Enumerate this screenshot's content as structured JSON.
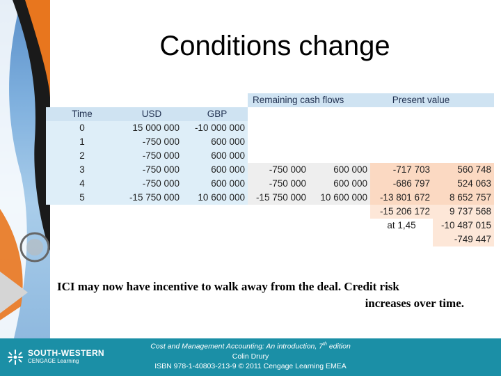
{
  "slide": {
    "title": "Conditions change",
    "note_line1": "ICI may now have incentive to walk away from the deal. Credit risk",
    "note_line2": "increases over time."
  },
  "table": {
    "header_remaining": "Remaining cash flows",
    "header_present": "Present value",
    "col_time": "Time",
    "col_usd": "USD",
    "col_gbp": "GBP",
    "rows": [
      {
        "time": "0",
        "usd": "15 000 000",
        "gbp": "-10 000 000",
        "rem_usd": "",
        "rem_gbp": "",
        "pv_usd": "",
        "pv_gbp": ""
      },
      {
        "time": "1",
        "usd": "-750 000",
        "gbp": "600 000",
        "rem_usd": "",
        "rem_gbp": "",
        "pv_usd": "",
        "pv_gbp": ""
      },
      {
        "time": "2",
        "usd": "-750 000",
        "gbp": "600 000",
        "rem_usd": "",
        "rem_gbp": "",
        "pv_usd": "",
        "pv_gbp": ""
      },
      {
        "time": "3",
        "usd": "-750 000",
        "gbp": "600 000",
        "rem_usd": "-750 000",
        "rem_gbp": "600 000",
        "pv_usd": "-717 703",
        "pv_gbp": "560 748"
      },
      {
        "time": "4",
        "usd": "-750 000",
        "gbp": "600 000",
        "rem_usd": "-750 000",
        "rem_gbp": "600 000",
        "pv_usd": "-686 797",
        "pv_gbp": "524 063"
      },
      {
        "time": "5",
        "usd": "-15 750 000",
        "gbp": "10 600 000",
        "rem_usd": "-15 750 000",
        "rem_gbp": "10 600 000",
        "pv_usd": "-13 801 672",
        "pv_gbp": "8 652 757"
      }
    ],
    "total_usd": "-15 206 172",
    "total_gbp": "9 737 568",
    "rate_label": "at 1,45",
    "converted": "-10 487 015",
    "net": "-749 447"
  },
  "footer": {
    "logo_main": "SOUTH-WESTERN",
    "logo_sub": "CENGAGE Learning",
    "book_title": "Cost and Management Accounting: An introduction, 7",
    "edition_sup": "th",
    "edition_word": " edition",
    "author": "Colin Drury",
    "isbn": "ISBN 978-1-40803-213-9 © 2011 Cengage Learning EMEA"
  },
  "colors": {
    "footer_bg": "#1b8fa6",
    "table_blue": "#cfe3f2",
    "table_peach": "#fbd9c2"
  }
}
